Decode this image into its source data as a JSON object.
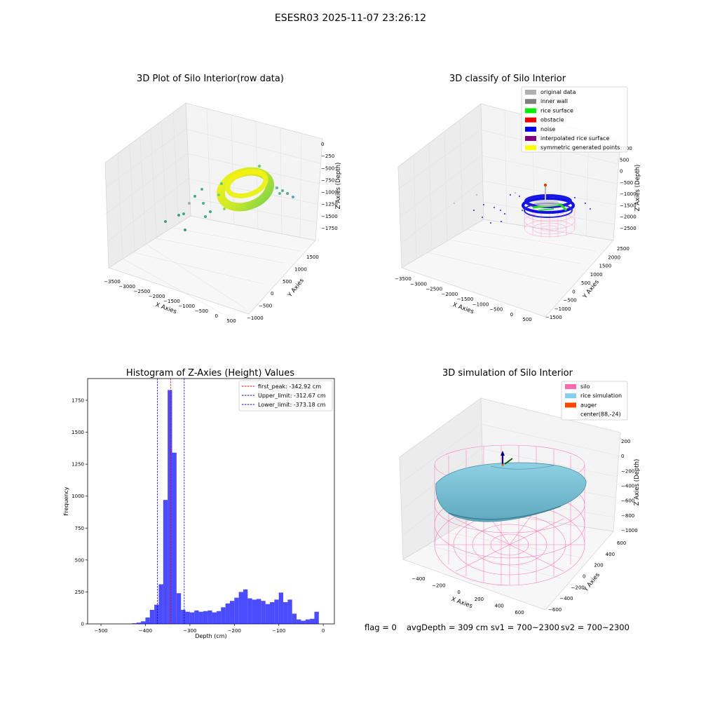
{
  "suptitle": "ESESR03 2025-11-07 23:26:12",
  "panels": {
    "raw": {
      "title": "3D Plot of Silo Interior(row data)",
      "xlabel": "X Axies",
      "ylabel": "Y Axies",
      "zlabel": "Z Axies (Depth)",
      "xticks": [
        "−3500",
        "−3000",
        "−2500",
        "−2000",
        "−1500",
        "−1000",
        "−500",
        "0",
        "500"
      ],
      "yticks": [
        "−1000",
        "−500",
        "0",
        "500",
        "1000",
        "1500"
      ],
      "zticks": [
        "0",
        "−250",
        "−500",
        "−750",
        "−1000",
        "−1250",
        "−1500",
        "−1750"
      ]
    },
    "classify": {
      "title": "3D classify of Silo Interior",
      "xlabel": "X Axies",
      "ylabel": "Y Axies",
      "zlabel": "Z Axies (Depth)",
      "xticks": [
        "−3500",
        "−3000",
        "−2500",
        "−2000",
        "−1500",
        "−1000",
        "−500",
        "0",
        "500"
      ],
      "yticks": [
        "−1500",
        "−1000",
        "−500",
        "0",
        "500",
        "1000",
        "1500",
        "2000",
        "2500"
      ],
      "zticks": [
        "1000",
        "500",
        "0",
        "−500",
        "−1000",
        "−1500",
        "−2000",
        "−2500"
      ],
      "legend": [
        {
          "label": "original data",
          "color": "#b0b0b0"
        },
        {
          "label": "inner wall",
          "color": "#808080"
        },
        {
          "label": "rice surface",
          "color": "#00ee00"
        },
        {
          "label": "obstacle",
          "color": "#ee0000"
        },
        {
          "label": "noise",
          "color": "#0000ee"
        },
        {
          "label": "interpolated rice surface",
          "color": "#800080"
        },
        {
          "label": "symmetric generated points",
          "color": "#ffff00"
        }
      ]
    },
    "histogram": {
      "title": "Histogram of Z-Axies (Height) Values",
      "legend": [
        {
          "label": "first_peak: -342.92 cm",
          "color": "#ff0000"
        },
        {
          "label": "Upper_limit: -312.67 cm",
          "color": "#0000cc"
        },
        {
          "label": "Lower_limit: -373.18 cm",
          "color": "#0000cc"
        }
      ]
    },
    "simulation": {
      "title": "3D simulation of Silo Interior",
      "xlabel": "X Axies",
      "ylabel": "Y Axies",
      "zlabel": "Z Axies (Depth)",
      "xticks": [
        "−400",
        "−200",
        "0",
        "200",
        "400",
        "600"
      ],
      "yticks": [
        "−600",
        "−400",
        "−200",
        "0",
        "200",
        "400",
        "600"
      ],
      "zticks": [
        "200",
        "0",
        "−200",
        "−400",
        "−600",
        "−800",
        "−1000"
      ],
      "legend": [
        {
          "label": "silo",
          "color": "#ff69b4"
        },
        {
          "label": "rice simulation",
          "color": "#87ceeb"
        },
        {
          "label": "auger",
          "color": "#ff4500"
        },
        {
          "label": "center(88,-24)",
          "color": ""
        }
      ]
    }
  },
  "status": {
    "flag": "flag = 0",
    "avg_depth": "avgDepth = 309 cm",
    "sv1": "sv1 = 700~2300",
    "sv2": "sv2 = 700~2300"
  },
  "chart_data": [
    {
      "type": "scatter",
      "panel": "raw",
      "note": "3D point cloud of silo interior; dense ring of points near center, sparse outliers",
      "zlim": [
        -1750,
        0
      ]
    },
    {
      "type": "scatter",
      "panel": "classify",
      "note": "3D classified point cloud with pink cylindrical silo wireframe",
      "zlim": [
        -2500,
        1000
      ]
    },
    {
      "type": "bar",
      "panel": "histogram",
      "title": "Histogram of Z-Axies (Height) Values",
      "xlabel": "Depth (cm)",
      "ylabel": "Frequency",
      "xlim": [
        -530,
        25
      ],
      "ylim": [
        0,
        1920
      ],
      "xticks": [
        -500,
        -400,
        -300,
        -200,
        -100,
        0
      ],
      "yticks": [
        0,
        250,
        500,
        750,
        1000,
        1250,
        1500,
        1750
      ],
      "bin_width": 10,
      "bins": [
        {
          "x": -430,
          "y": 5
        },
        {
          "x": -420,
          "y": 10
        },
        {
          "x": -410,
          "y": 20
        },
        {
          "x": -400,
          "y": 50
        },
        {
          "x": -390,
          "y": 110
        },
        {
          "x": -380,
          "y": 150
        },
        {
          "x": -370,
          "y": 310
        },
        {
          "x": -360,
          "y": 970
        },
        {
          "x": -350,
          "y": 1830
        },
        {
          "x": -340,
          "y": 1340
        },
        {
          "x": -330,
          "y": 240
        },
        {
          "x": -320,
          "y": 110
        },
        {
          "x": -310,
          "y": 95
        },
        {
          "x": -300,
          "y": 90
        },
        {
          "x": -290,
          "y": 105
        },
        {
          "x": -280,
          "y": 95
        },
        {
          "x": -270,
          "y": 100
        },
        {
          "x": -260,
          "y": 105
        },
        {
          "x": -250,
          "y": 90
        },
        {
          "x": -240,
          "y": 100
        },
        {
          "x": -230,
          "y": 130
        },
        {
          "x": -220,
          "y": 160
        },
        {
          "x": -210,
          "y": 180
        },
        {
          "x": -200,
          "y": 205
        },
        {
          "x": -190,
          "y": 250
        },
        {
          "x": -180,
          "y": 270
        },
        {
          "x": -170,
          "y": 200
        },
        {
          "x": -160,
          "y": 190
        },
        {
          "x": -150,
          "y": 195
        },
        {
          "x": -140,
          "y": 180
        },
        {
          "x": -130,
          "y": 155
        },
        {
          "x": -120,
          "y": 170
        },
        {
          "x": -110,
          "y": 190
        },
        {
          "x": -100,
          "y": 245
        },
        {
          "x": -90,
          "y": 170
        },
        {
          "x": -80,
          "y": 190
        },
        {
          "x": -70,
          "y": 80
        },
        {
          "x": -60,
          "y": 35
        },
        {
          "x": -50,
          "y": 25
        },
        {
          "x": -40,
          "y": 35
        },
        {
          "x": -30,
          "y": 40
        },
        {
          "x": -20,
          "y": 95
        }
      ],
      "vlines": [
        {
          "x": -342.92,
          "color": "#ff0000"
        },
        {
          "x": -312.67,
          "color": "#0000cc"
        },
        {
          "x": -373.18,
          "color": "#0000cc"
        }
      ]
    },
    {
      "type": "surface",
      "panel": "simulation",
      "note": "cylindrical silo wireframe with simulated rice surface and auger",
      "center": [
        88,
        -24
      ],
      "zlim": [
        -1000,
        200
      ]
    }
  ]
}
